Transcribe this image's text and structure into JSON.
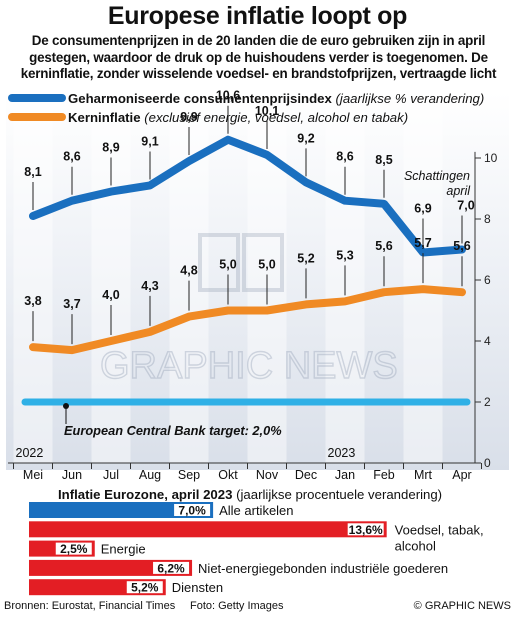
{
  "title": "Europese inflatie loopt op",
  "subtitle": "De consumentenprijzen in de 20 landen die de euro gebruiken zijn in april gestegen, waardoor de druk op de huishoudens verder is toegenomen. De kerninflatie, zonder wisselende voedsel- en brandstofprijzen, vertraagde licht",
  "chart_data": [
    {
      "type": "line",
      "x": [
        "Mei",
        "Jun",
        "Jul",
        "Aug",
        "Sep",
        "Okt",
        "Nov",
        "Dec",
        "Jan",
        "Feb",
        "Mrt",
        "Apr"
      ],
      "year_labels": [
        {
          "text": "2022",
          "at": "Mei"
        },
        {
          "text": "2023",
          "at": "Jan"
        }
      ],
      "series": [
        {
          "name": "Geharmoniseerde consumentenprijsindex",
          "note": "(jaarlijkse % verandering)",
          "values": [
            8.1,
            8.6,
            8.9,
            9.1,
            9.9,
            10.6,
            10.1,
            9.2,
            8.6,
            8.5,
            6.9,
            7.0
          ],
          "labels": [
            "8,1",
            "8,6",
            "8,9",
            "9,1",
            "9,9",
            "10,6",
            "10,1",
            "9,2",
            "8,6",
            "8,5",
            "6,9",
            "7,0"
          ],
          "color": "#1a6fbf"
        },
        {
          "name": "Kerninflatie",
          "note": "(exclusief energie, voedsel, alcohol en tabak)",
          "values": [
            3.8,
            3.7,
            4.0,
            4.3,
            4.8,
            5.0,
            5.0,
            5.2,
            5.3,
            5.6,
            5.7,
            5.6
          ],
          "labels": [
            "3,8",
            "3,7",
            "4,0",
            "4,3",
            "4,8",
            "5,0",
            "5,0",
            "5,2",
            "5,3",
            "5,6",
            "5,7",
            "5,6"
          ],
          "color": "#f08a24"
        }
      ],
      "target": {
        "value": 2.0,
        "label": "European Central Bank target: 2,0%",
        "color": "#2fb0e6"
      },
      "estimate_note": "Schattingen april",
      "ylim": [
        0,
        11
      ],
      "yticks": [
        {
          "v": 0,
          "t": "0"
        },
        {
          "v": 2,
          "t": "2"
        },
        {
          "v": 4,
          "t": "4"
        },
        {
          "v": 6,
          "t": "6"
        },
        {
          "v": 8,
          "t": "8"
        },
        {
          "v": 10,
          "t": "10"
        }
      ],
      "legend": "top-left"
    },
    {
      "type": "bar",
      "title": "Inflatie Eurozone, april 2023",
      "title_note": "(jaarlijkse procentuele verandering)",
      "categories": [
        "Alle artikelen",
        "Voedsel, tabak, alcohol",
        "Energie",
        "Niet-energiegebonden industriële goederen",
        "Diensten"
      ],
      "values": [
        7.0,
        13.6,
        2.5,
        6.2,
        5.2
      ],
      "labels": [
        "7,0%",
        "13,6%",
        "2,5%",
        "6,2%",
        "5,2%"
      ],
      "colors": [
        "#1a6fbf",
        "#e31e24",
        "#e31e24",
        "#e31e24",
        "#e31e24"
      ]
    }
  ],
  "footer": {
    "sources": "Bronnen: Eurostat, Financial Times",
    "photo": "Foto: Getty Images",
    "copyright": "© GRAPHIC NEWS"
  }
}
